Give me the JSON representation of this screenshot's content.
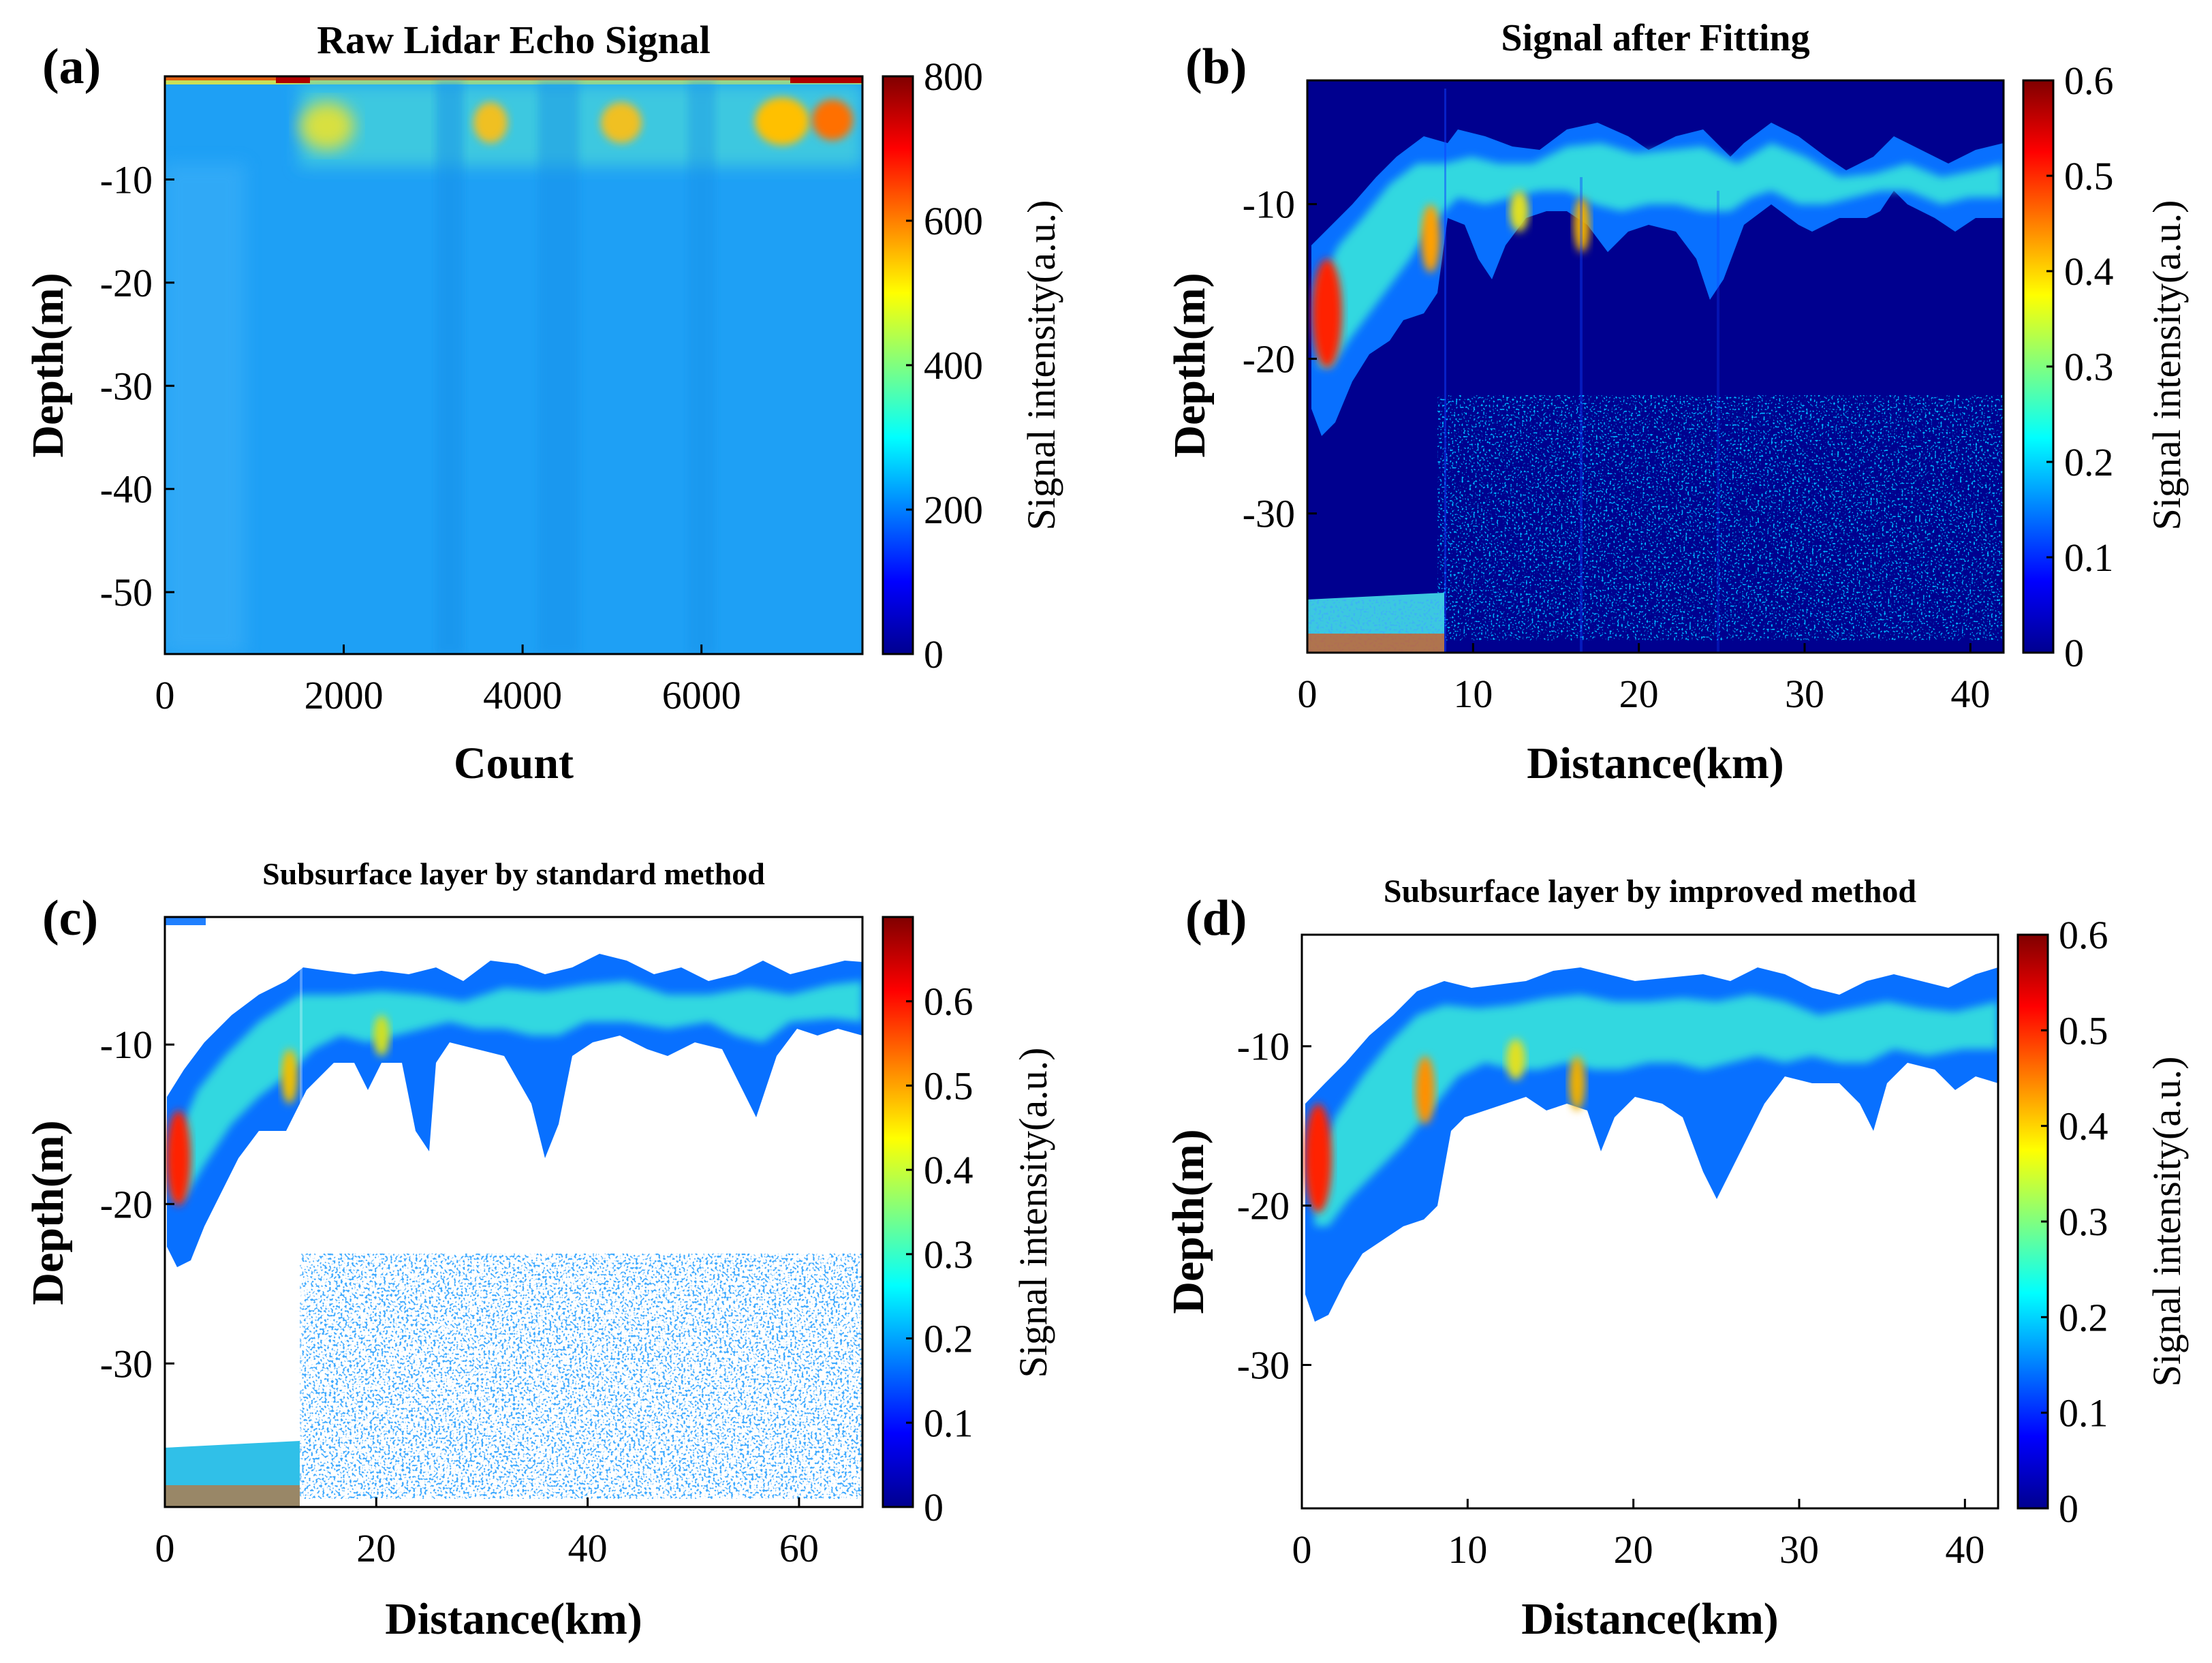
{
  "colormap": [
    "#00008f",
    "#0000ff",
    "#0080ff",
    "#00ffff",
    "#80ff80",
    "#ffff00",
    "#ff8000",
    "#ff0000",
    "#800000"
  ],
  "chart_data": [
    {
      "letter": "(a)",
      "type": "heatmap",
      "title": "Raw Lidar Echo Signal",
      "xlabel": "Count",
      "ylabel": "Depth(m)",
      "xlim": [
        0,
        7800
      ],
      "ylim": [
        -56,
        0
      ],
      "xticks": [
        0,
        2000,
        4000,
        6000
      ],
      "yticks": [
        -10,
        -20,
        -30,
        -40,
        -50
      ],
      "colorbar": {
        "label": "Signal intensity(a.u.)",
        "range": [
          0,
          800
        ],
        "ticks": [
          0,
          200,
          400,
          600,
          800
        ]
      }
    },
    {
      "letter": "(b)",
      "type": "heatmap",
      "title": "Signal after Fitting",
      "xlabel": "Distance(km)",
      "ylabel": "Depth(m)",
      "xlim": [
        0,
        42
      ],
      "ylim": [
        -39,
        -2
      ],
      "xticks": [
        0,
        10,
        20,
        30,
        40
      ],
      "yticks": [
        -10,
        -20,
        -30
      ],
      "colorbar": {
        "label": "Signal intensity(a.u.)",
        "range": [
          0,
          0.6
        ],
        "ticks": [
          0,
          0.1,
          0.2,
          0.3,
          0.4,
          0.5,
          0.6
        ]
      }
    },
    {
      "letter": "(c)",
      "type": "heatmap",
      "title": "Subsurface layer by standard method",
      "xlabel": "Distance(km)",
      "ylabel": "Depth(m)",
      "xlim": [
        0,
        66
      ],
      "ylim": [
        -39,
        -2
      ],
      "xticks": [
        0,
        20,
        40,
        60
      ],
      "yticks": [
        -10,
        -20,
        -30
      ],
      "colorbar": {
        "label": "Signal intensity(a.u.)",
        "range": [
          0,
          0.7
        ],
        "ticks": [
          0,
          0.1,
          0.2,
          0.3,
          0.4,
          0.5,
          0.6
        ]
      }
    },
    {
      "letter": "(d)",
      "type": "heatmap",
      "title": "Subsurface layer by improved method",
      "xlabel": "Distance(km)",
      "ylabel": "Depth(m)",
      "xlim": [
        0,
        42
      ],
      "ylim": [
        -39,
        -3
      ],
      "xticks": [
        0,
        10,
        20,
        30,
        40
      ],
      "yticks": [
        -10,
        -20,
        -30
      ],
      "colorbar": {
        "label": "Signal intensity(a.u.)",
        "range": [
          0,
          0.6
        ],
        "ticks": [
          0,
          0.1,
          0.2,
          0.3,
          0.4,
          0.5,
          0.6
        ]
      }
    }
  ]
}
